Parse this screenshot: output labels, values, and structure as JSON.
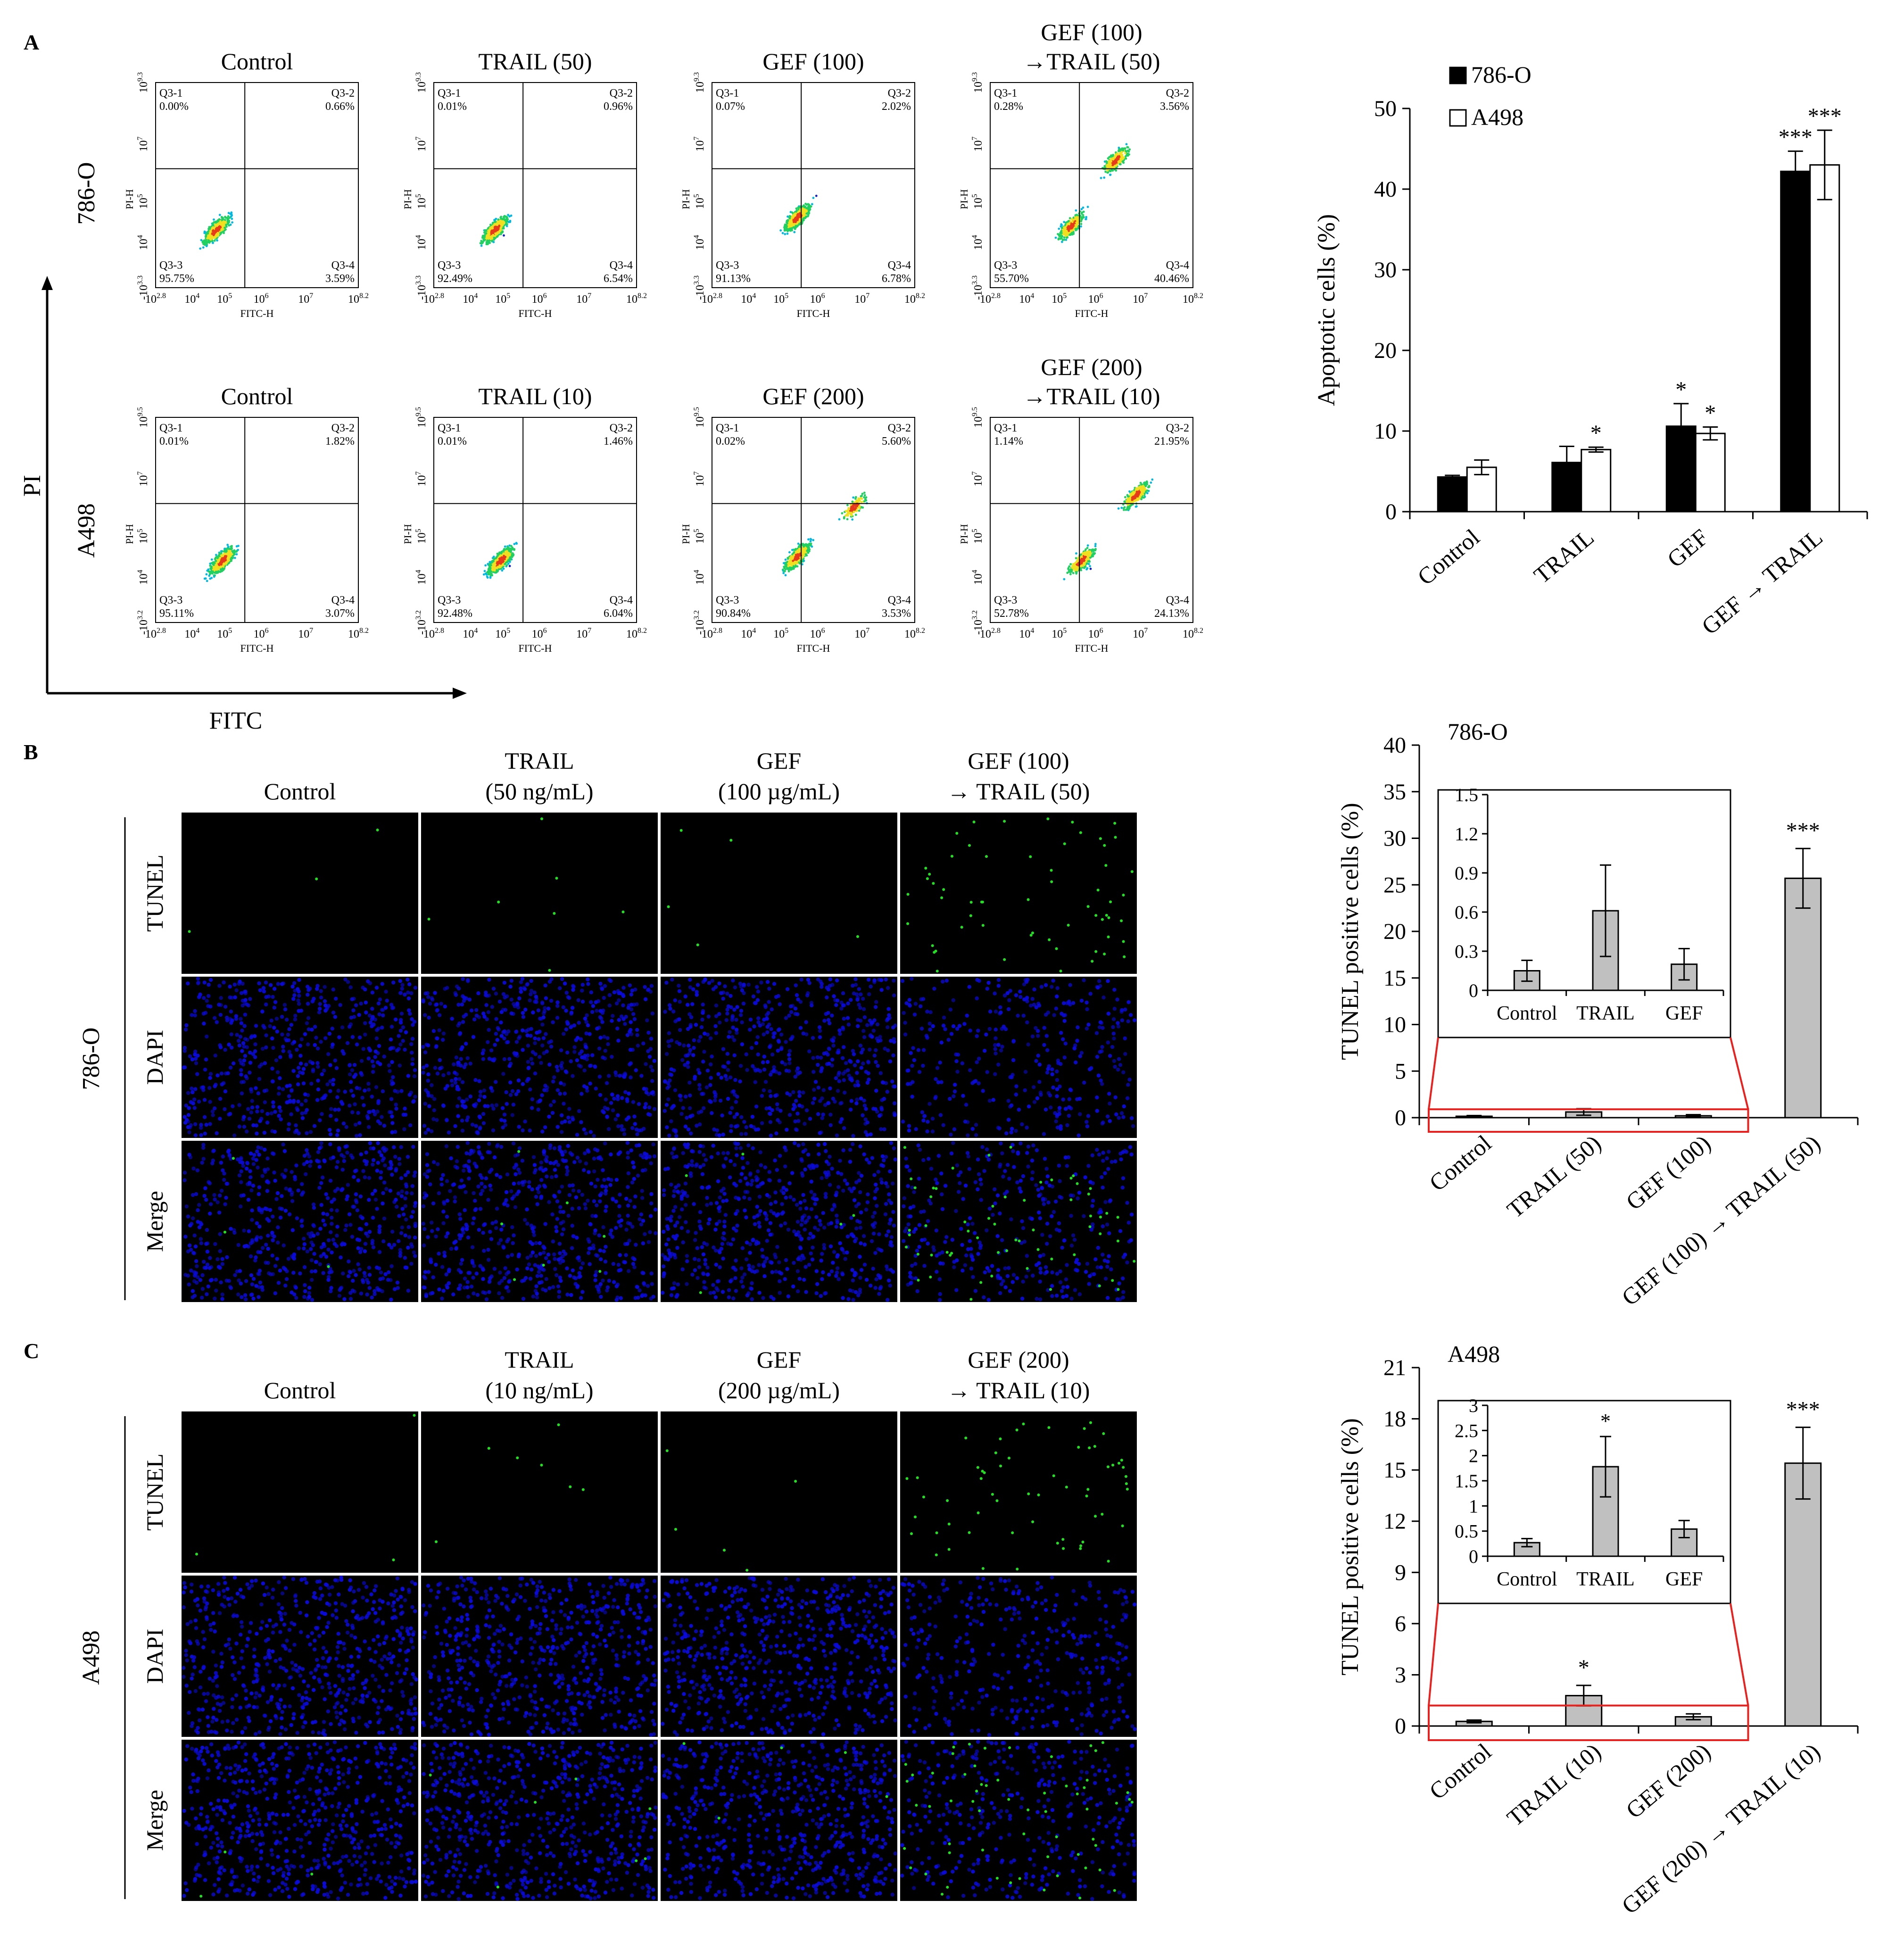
{
  "colors": {
    "black_bar": "#000000",
    "white_bar": "#ffffff",
    "gray_bar": "#c0c0c0",
    "zoom_box": "#e8211f",
    "dapi": "#0a0ad8",
    "tunel": "#22e022",
    "flow_hot": "#e63a1a",
    "flow_mid": "#f0e020",
    "flow_low": "#1020c8"
  },
  "panel_A": {
    "letter": "A",
    "axis_y_label": "PI",
    "axis_x_label": "FITC",
    "row_labels": [
      "786-O",
      "A498"
    ],
    "plot_y_axis": "PI-H",
    "plot_x_axis": "FITC-H",
    "x_ticks": [
      "10",
      "10",
      "10",
      "10",
      "10",
      "10"
    ],
    "x_tick_exps": [
      "2.8",
      "4",
      "5",
      "6",
      "7",
      "8.2"
    ],
    "y_ticks_row1": [
      "-10",
      "10",
      "10",
      "10",
      "10"
    ],
    "y_tick_exps_row1": [
      "3.3",
      "4",
      "5",
      "7",
      "9.3"
    ],
    "y_ticks_row2": [
      "-10",
      "10",
      "10",
      "10",
      "10"
    ],
    "y_tick_exps_row2": [
      "3.2",
      "4",
      "5",
      "7",
      "9.5"
    ],
    "quadrant_names": [
      "Q3-1",
      "Q3-2",
      "Q3-3",
      "Q3-4"
    ],
    "plots": [
      {
        "title_lines": [
          "Control"
        ],
        "q1": "0.00%",
        "q2": "0.66%",
        "q3": "95.75%",
        "q4": "3.59%"
      },
      {
        "title_lines": [
          "TRAIL (50)"
        ],
        "q1": "0.01%",
        "q2": "0.96%",
        "q3": "92.49%",
        "q4": "6.54%"
      },
      {
        "title_lines": [
          "GEF (100)"
        ],
        "q1": "0.07%",
        "q2": "2.02%",
        "q3": "91.13%",
        "q4": "6.78%"
      },
      {
        "title_lines": [
          "GEF (100)",
          "→TRAIL (50)"
        ],
        "q1": "0.28%",
        "q2": "3.56%",
        "q3": "55.70%",
        "q4": "40.46%"
      },
      {
        "title_lines": [
          "Control"
        ],
        "q1": "0.01%",
        "q2": "1.82%",
        "q3": "95.11%",
        "q4": "3.07%"
      },
      {
        "title_lines": [
          "TRAIL (10)"
        ],
        "q1": "0.01%",
        "q2": "1.46%",
        "q3": "92.48%",
        "q4": "6.04%"
      },
      {
        "title_lines": [
          "GEF (200)"
        ],
        "q1": "0.02%",
        "q2": "5.60%",
        "q3": "90.84%",
        "q4": "3.53%"
      },
      {
        "title_lines": [
          "GEF (200)",
          "→TRAIL (10)"
        ],
        "q1": "1.14%",
        "q2": "21.95%",
        "q3": "52.78%",
        "q4": "24.13%"
      }
    ]
  },
  "panel_B": {
    "letter": "B",
    "cell_line": "786-O",
    "columns": [
      [
        "Control"
      ],
      [
        "TRAIL",
        "(50 ng/mL)"
      ],
      [
        "GEF",
        "(100 µg/mL)"
      ],
      [
        "GEF (100)",
        "→ TRAIL (50)"
      ]
    ],
    "rows": [
      "TUNEL",
      "DAPI",
      "Merge"
    ]
  },
  "panel_C": {
    "letter": "C",
    "cell_line": "A498",
    "columns": [
      [
        "Control"
      ],
      [
        "TRAIL",
        "(10 ng/mL)"
      ],
      [
        "GEF",
        "(200 µg/mL)"
      ],
      [
        "GEF (200)",
        "→ TRAIL (10)"
      ]
    ],
    "rows": [
      "TUNEL",
      "DAPI",
      "Merge"
    ]
  },
  "chart_data": [
    {
      "type": "bar",
      "title": "",
      "ylabel": "Apoptotic cells (%)",
      "xlabel": "",
      "categories": [
        "Control",
        "TRAIL",
        "GEF",
        "GEF → TRAIL"
      ],
      "ylim": [
        0,
        50
      ],
      "yticks": [
        0,
        10,
        20,
        30,
        40,
        50
      ],
      "legend": "top-left",
      "series": [
        {
          "name": "786-O",
          "values": [
            4.3,
            6.1,
            10.6,
            42.2
          ],
          "errors": [
            0.2,
            2.0,
            2.8,
            2.5
          ],
          "sig": [
            "",
            "",
            "*",
            "***"
          ]
        },
        {
          "name": "A498",
          "values": [
            5.5,
            7.7,
            9.7,
            43.0
          ],
          "errors": [
            0.9,
            0.3,
            0.8,
            4.3
          ],
          "sig": [
            "",
            "*",
            "*",
            "***"
          ]
        }
      ]
    },
    {
      "type": "bar",
      "title": "786-O",
      "ylabel": "TUNEL positive cells (%)",
      "categories": [
        "Control",
        "TRAIL (50)",
        "GEF (100)",
        "GEF (100) → TRAIL (50)"
      ],
      "ylim": [
        0,
        40
      ],
      "yticks": [
        0,
        5,
        10,
        15,
        20,
        25,
        30,
        35,
        40
      ],
      "values": [
        0.15,
        0.61,
        0.2,
        25.7
      ],
      "errors": [
        0.08,
        0.35,
        0.12,
        3.2
      ],
      "sig": [
        "",
        "",
        "",
        "***"
      ],
      "inset": {
        "categories": [
          "Control",
          "TRAIL",
          "GEF"
        ],
        "ylim": [
          0,
          1.5
        ],
        "yticks": [
          "0",
          "0.3",
          "0.6",
          "0.9",
          "1.2",
          "1.5"
        ],
        "values": [
          0.15,
          0.61,
          0.2
        ],
        "errors": [
          0.08,
          0.35,
          0.12
        ],
        "sig": [
          "",
          "",
          ""
        ]
      }
    },
    {
      "type": "bar",
      "title": "A498",
      "ylabel": "TUNEL positive cells (%)",
      "categories": [
        "Control",
        "TRAIL (10)",
        "GEF (200)",
        "GEF (200) → TRAIL (10)"
      ],
      "ylim": [
        0,
        21
      ],
      "yticks": [
        0,
        3,
        6,
        9,
        12,
        15,
        18,
        21
      ],
      "values": [
        0.27,
        1.78,
        0.54,
        15.4
      ],
      "errors": [
        0.08,
        0.6,
        0.17,
        2.1
      ],
      "sig": [
        "",
        "*",
        "",
        "***"
      ],
      "inset": {
        "categories": [
          "Control",
          "TRAIL",
          "GEF"
        ],
        "ylim": [
          0,
          3
        ],
        "yticks": [
          "0",
          "0.5",
          "1",
          "1.5",
          "2",
          "2.5",
          "3"
        ],
        "values": [
          0.27,
          1.78,
          0.54
        ],
        "errors": [
          0.08,
          0.6,
          0.17
        ],
        "sig": [
          "",
          "*",
          ""
        ]
      }
    }
  ]
}
